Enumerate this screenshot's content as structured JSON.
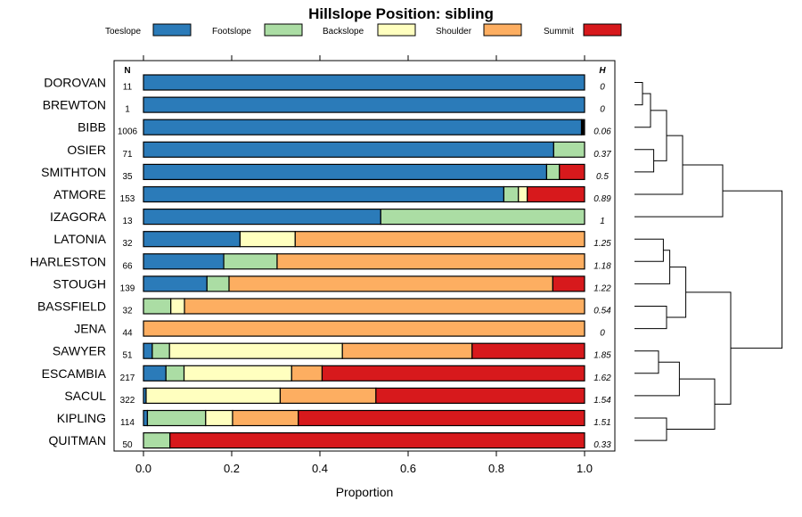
{
  "chart_data": {
    "type": "bar",
    "orientation": "horizontal",
    "stacked": true,
    "title": "Hillslope Position: sibling",
    "xlabel": "Proportion",
    "xlim": [
      0,
      1
    ],
    "xticks": [
      "0.0",
      "0.2",
      "0.4",
      "0.6",
      "0.8",
      "1.0"
    ],
    "xtick_values": [
      0,
      0.2,
      0.4,
      0.6,
      0.8,
      1.0
    ],
    "n_header": "N",
    "h_header": "H",
    "categories": [
      "Toeslope",
      "Footslope",
      "Backslope",
      "Shoulder",
      "Summit"
    ],
    "colors": [
      "#2b7bb9",
      "#abdda4",
      "#ffffbf",
      "#fdae61",
      "#d7191c"
    ],
    "rows": [
      {
        "name": "DOROVAN",
        "n": "11",
        "h": "0",
        "values": [
          1.0,
          0,
          0,
          0,
          0
        ]
      },
      {
        "name": "BREWTON",
        "n": "1",
        "h": "0",
        "values": [
          1.0,
          0,
          0,
          0,
          0
        ]
      },
      {
        "name": "BIBB",
        "n": "1006",
        "h": "0.06",
        "values": [
          0.993,
          0,
          0,
          0,
          0.007
        ]
      },
      {
        "name": "OSIER",
        "n": "71",
        "h": "0.37",
        "values": [
          0.93,
          0.07,
          0,
          0,
          0
        ]
      },
      {
        "name": "SMITHTON",
        "n": "35",
        "h": "0.5",
        "values": [
          0.914,
          0.029,
          0,
          0,
          0.057
        ]
      },
      {
        "name": "ATMORE",
        "n": "153",
        "h": "0.89",
        "values": [
          0.817,
          0.033,
          0.02,
          0,
          0.13
        ]
      },
      {
        "name": "IZAGORA",
        "n": "13",
        "h": "1",
        "values": [
          0.538,
          0.462,
          0,
          0,
          0
        ]
      },
      {
        "name": "LATONIA",
        "n": "32",
        "h": "1.25",
        "values": [
          0.219,
          0,
          0.125,
          0.656,
          0
        ]
      },
      {
        "name": "HARLESTON",
        "n": "66",
        "h": "1.18",
        "values": [
          0.182,
          0.121,
          0,
          0.697,
          0
        ]
      },
      {
        "name": "STOUGH",
        "n": "139",
        "h": "1.22",
        "values": [
          0.144,
          0.05,
          0,
          0.734,
          0.072
        ]
      },
      {
        "name": "BASSFIELD",
        "n": "32",
        "h": "0.54",
        "values": [
          0,
          0.062,
          0.031,
          0.907,
          0
        ]
      },
      {
        "name": "JENA",
        "n": "44",
        "h": "0",
        "values": [
          0,
          0,
          0,
          1.0,
          0
        ]
      },
      {
        "name": "SAWYER",
        "n": "51",
        "h": "1.85",
        "values": [
          0.02,
          0.039,
          0.392,
          0.294,
          0.255
        ]
      },
      {
        "name": "ESCAMBIA",
        "n": "217",
        "h": "1.62",
        "values": [
          0.051,
          0.041,
          0.244,
          0.069,
          0.595
        ]
      },
      {
        "name": "SACUL",
        "n": "322",
        "h": "1.54",
        "values": [
          0.006,
          0,
          0.304,
          0.217,
          0.473
        ]
      },
      {
        "name": "KIPLING",
        "n": "114",
        "h": "1.51",
        "values": [
          0.009,
          0.132,
          0.061,
          0.149,
          0.649
        ]
      },
      {
        "name": "QUITMAN",
        "n": "50",
        "h": "0.33",
        "values": [
          0,
          0.06,
          0,
          0,
          0.94
        ]
      }
    ],
    "dendrogram": {
      "description": "hierarchical clustering of the series, leaves in row order",
      "merges": [
        [
          0,
          1,
          0.05
        ],
        [
          17,
          2,
          0.1
        ],
        [
          3,
          4,
          0.12
        ],
        [
          18,
          19,
          0.2
        ],
        [
          20,
          5,
          0.3
        ],
        [
          21,
          6,
          0.55
        ],
        [
          7,
          8,
          0.18
        ],
        [
          23,
          9,
          0.22
        ],
        [
          10,
          11,
          0.2
        ],
        [
          24,
          25,
          0.32
        ],
        [
          12,
          13,
          0.15
        ],
        [
          27,
          14,
          0.28
        ],
        [
          15,
          16,
          0.2
        ],
        [
          28,
          29,
          0.5
        ],
        [
          26,
          30,
          0.6
        ],
        [
          22,
          31,
          0.92
        ]
      ]
    }
  }
}
